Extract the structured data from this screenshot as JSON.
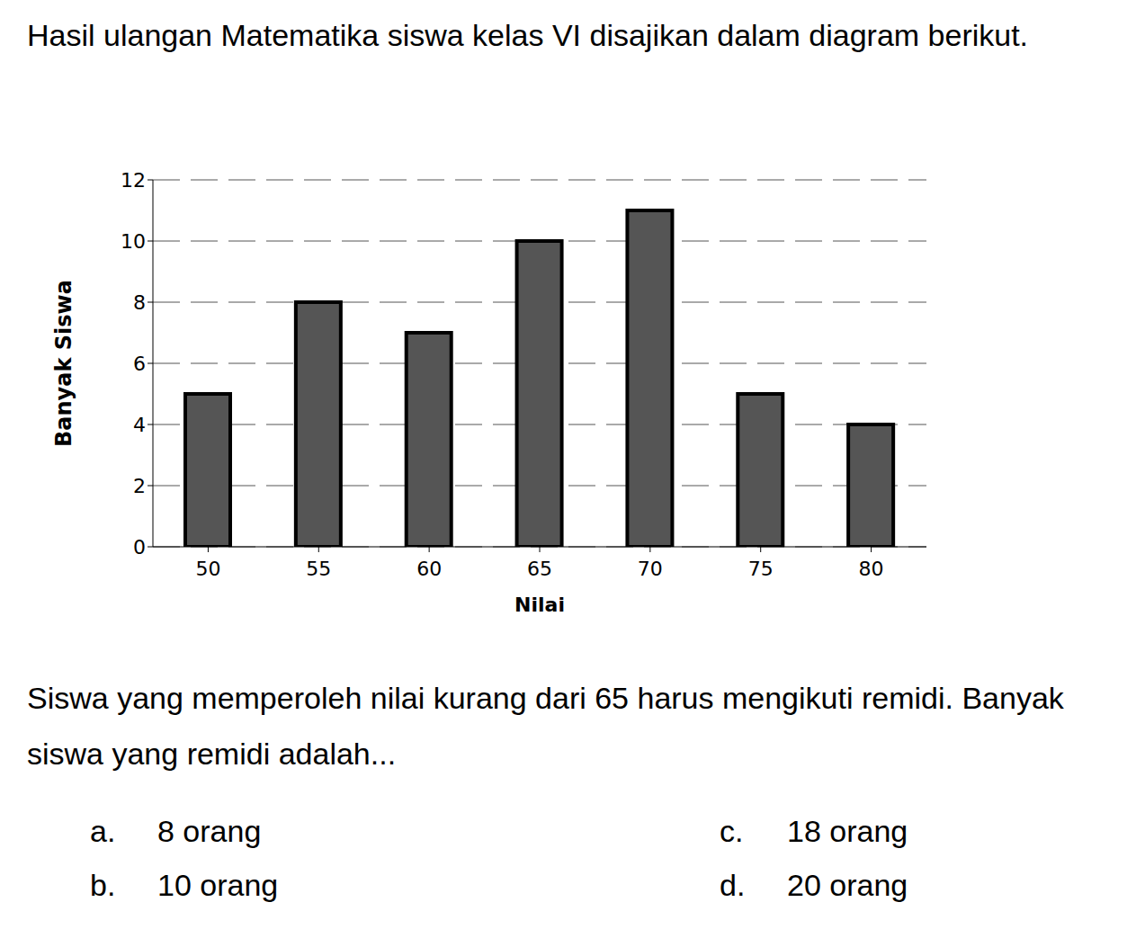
{
  "intro": "Hasil ulangan Matematika siswa kelas VI disajikan dalam diagram berikut.",
  "chart_data": {
    "type": "bar",
    "categories": [
      "50",
      "55",
      "60",
      "65",
      "70",
      "75",
      "80"
    ],
    "values": [
      5,
      8,
      7,
      10,
      11,
      5,
      4
    ],
    "color": "#555555",
    "xlabel": "Nilai",
    "ylabel": "Banyak Siswa",
    "ylim": [
      0,
      12
    ],
    "yticks": [
      0,
      2,
      4,
      6,
      8,
      10,
      12
    ],
    "grid": true
  },
  "question": "Siswa yang memperoleh nilai kurang dari 65 harus mengikuti remidi. Banyak siswa yang remidi adalah...",
  "options": [
    {
      "letter": "a.",
      "text": "8 orang"
    },
    {
      "letter": "b.",
      "text": "10 orang"
    },
    {
      "letter": "c.",
      "text": "18 orang"
    },
    {
      "letter": "d.",
      "text": "20 orang"
    }
  ]
}
